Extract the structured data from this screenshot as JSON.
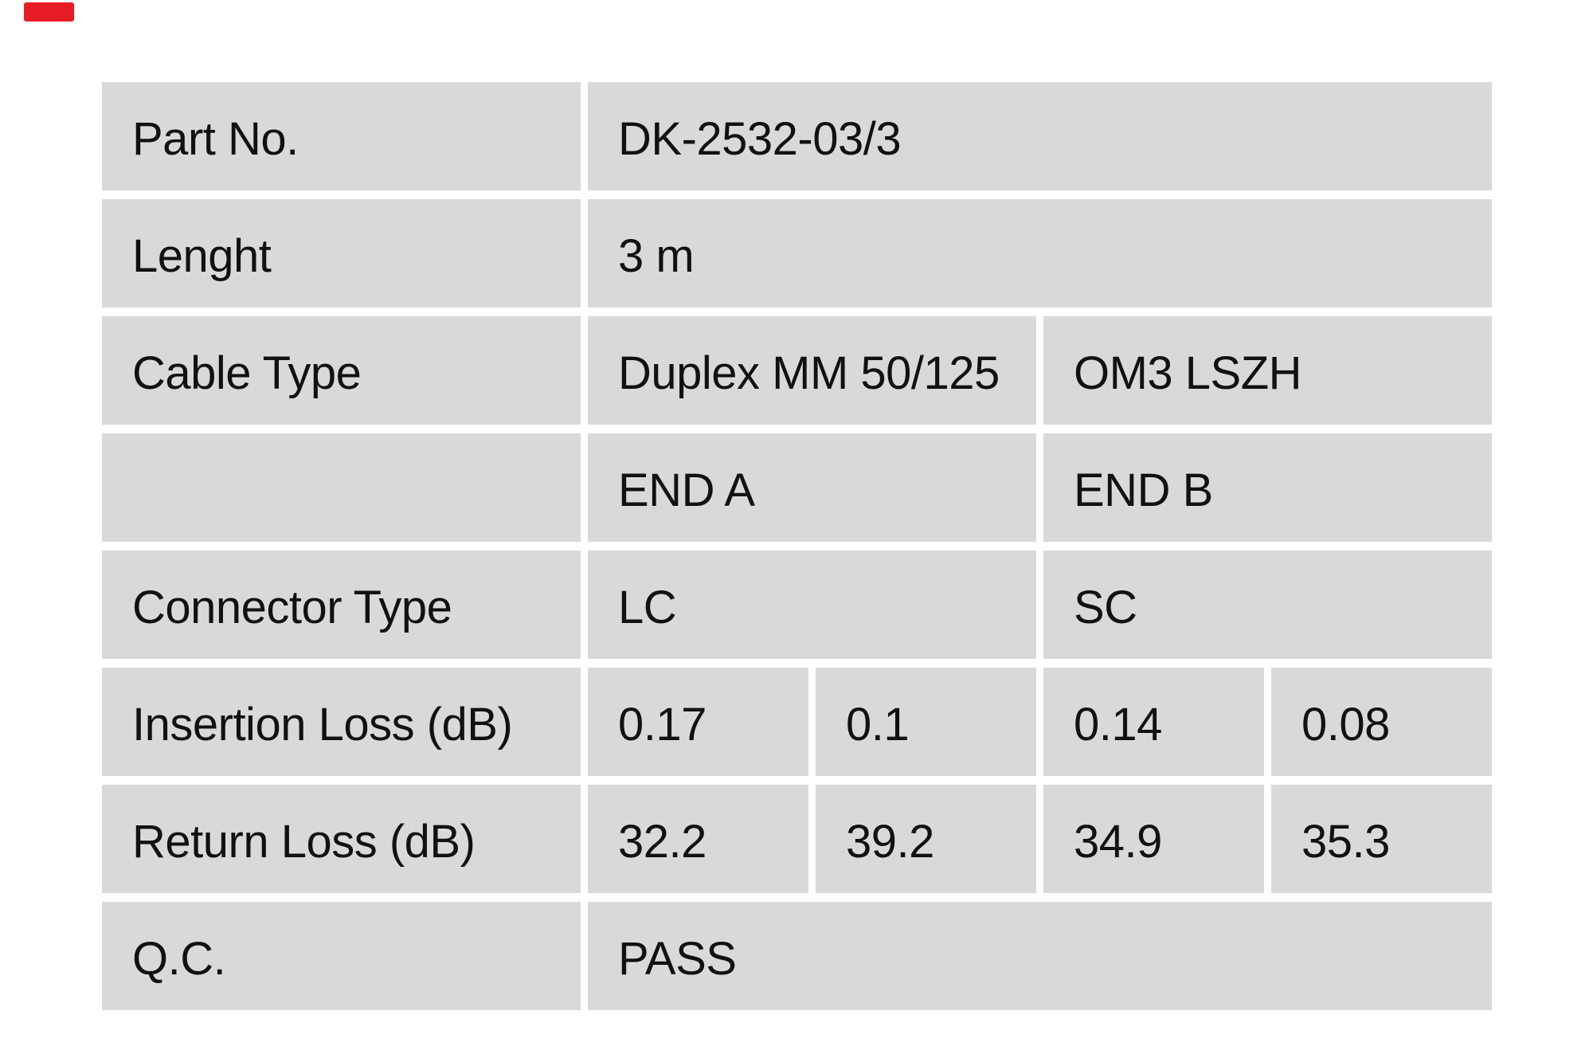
{
  "page": {
    "background_color": "#ffffff",
    "red_mark_color": "#e81c24"
  },
  "table": {
    "cell_background": "#d9d9d9",
    "text_color": "#111111",
    "rows": {
      "part_no": {
        "label": "Part No.",
        "value": "DK-2532-03/3"
      },
      "length": {
        "label": "Lenght",
        "value": "3 m"
      },
      "cable_type": {
        "label": "Cable Type",
        "value_end_a": "Duplex MM 50/125",
        "value_end_b": "OM3 LSZH"
      },
      "ends_header": {
        "label": "",
        "end_a": "END A",
        "end_b": "END B"
      },
      "connector_type": {
        "label": "Connector Type",
        "value_end_a": "LC",
        "value_end_b": "SC"
      },
      "insertion_loss": {
        "label": "Insertion Loss (dB)",
        "values": [
          "0.17",
          "0.1",
          "0.14",
          "0.08"
        ]
      },
      "return_loss": {
        "label": "Return Loss (dB)",
        "values": [
          "32.2",
          "39.2",
          "34.9",
          "35.3"
        ]
      },
      "qc": {
        "label": "Q.C.",
        "value": "PASS"
      }
    }
  }
}
